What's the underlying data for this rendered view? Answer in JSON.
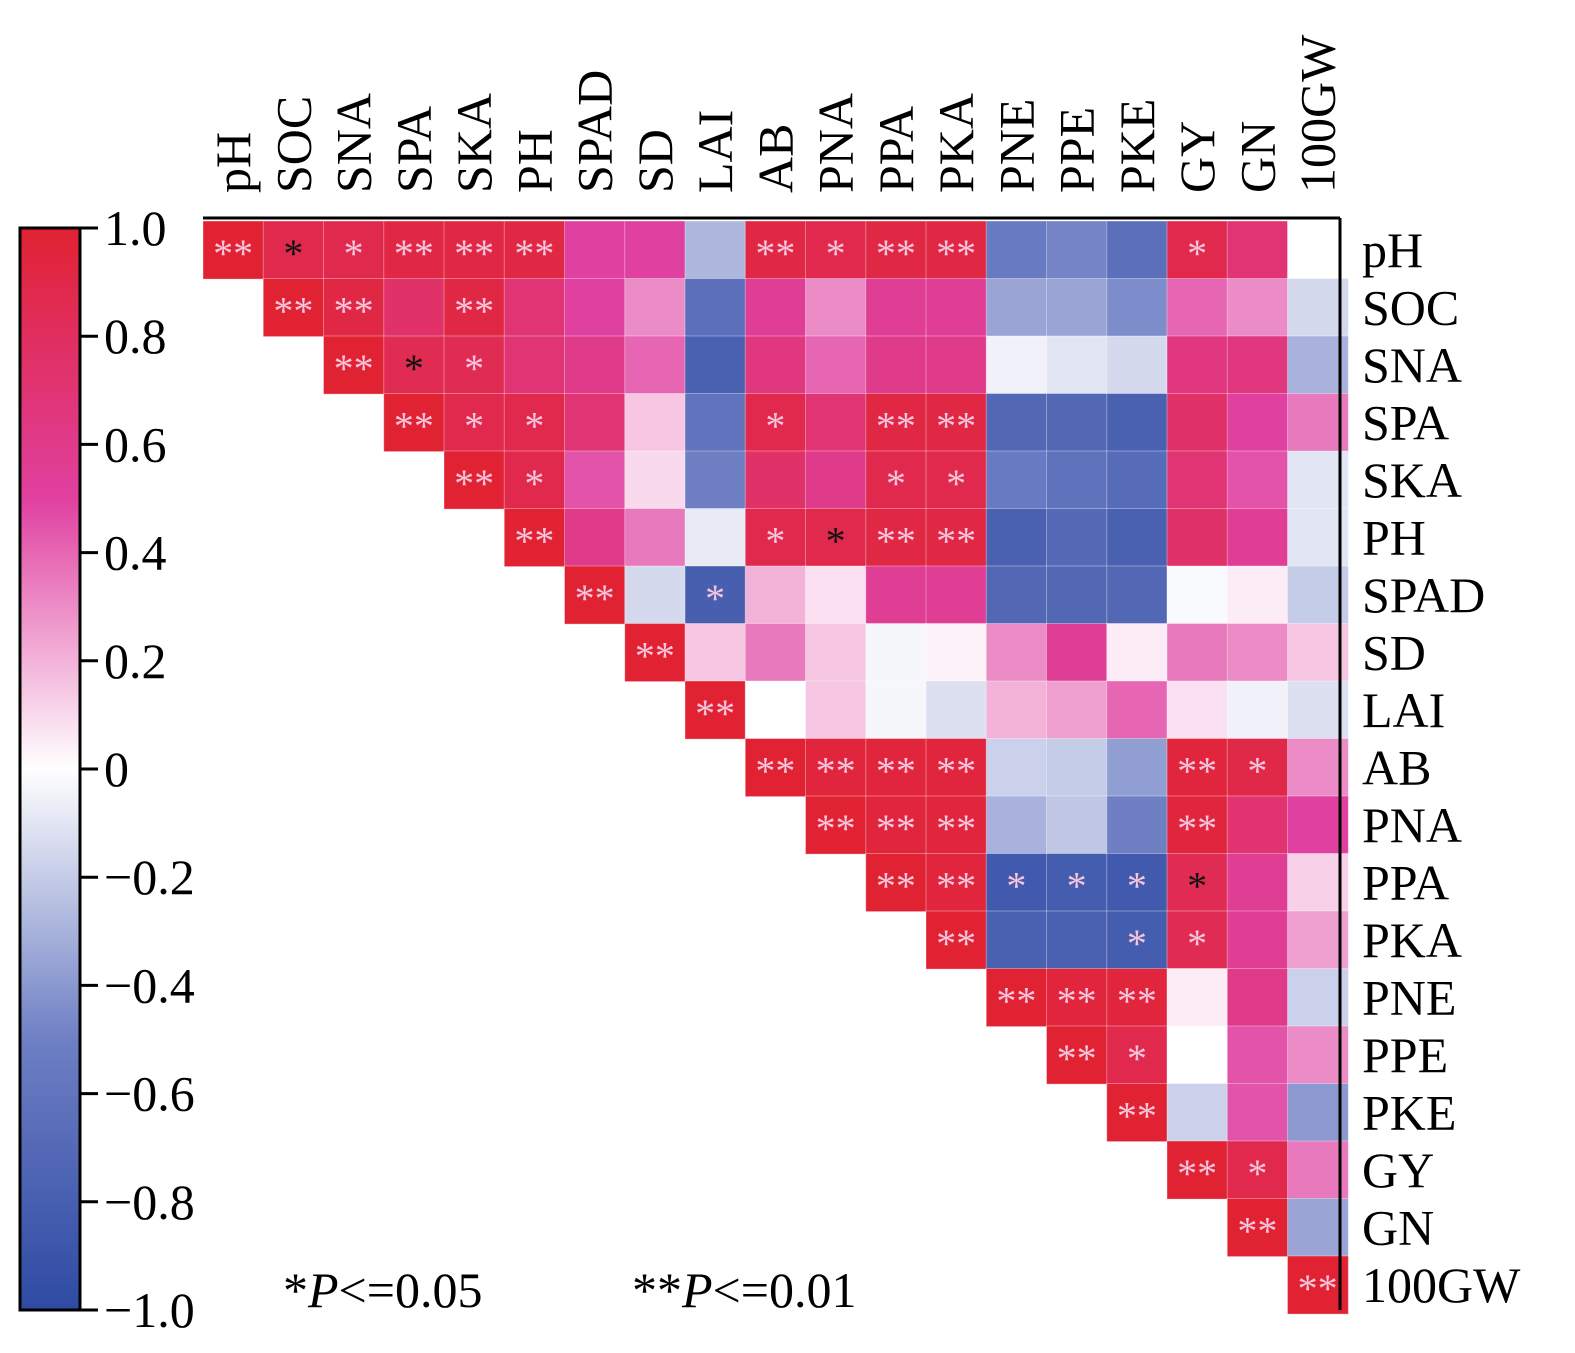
{
  "chart_data": {
    "type": "heatmap",
    "variables": [
      "pH",
      "SOC",
      "SNA",
      "SPA",
      "SKA",
      "PH",
      "SPAD",
      "SD",
      "LAI",
      "AB",
      "PNA",
      "PPA",
      "PKA",
      "PNE",
      "PPE",
      "PKE",
      "GY",
      "GN",
      "100GW"
    ],
    "matrix": [
      [
        1.0,
        0.88,
        0.88,
        0.92,
        0.92,
        0.92,
        0.5,
        0.5,
        -0.28,
        0.92,
        0.88,
        0.92,
        0.92,
        -0.55,
        -0.48,
        -0.65,
        0.88,
        0.7,
        0.0
      ],
      [
        null,
        1.0,
        0.92,
        0.75,
        0.92,
        0.7,
        0.5,
        0.3,
        -0.65,
        0.55,
        0.3,
        0.55,
        0.55,
        -0.35,
        -0.35,
        -0.45,
        0.4,
        0.3,
        -0.15
      ],
      [
        null,
        null,
        1.0,
        0.85,
        0.85,
        0.7,
        0.6,
        0.4,
        -0.78,
        0.65,
        0.4,
        0.6,
        0.6,
        -0.05,
        -0.1,
        -0.15,
        0.65,
        0.65,
        -0.3
      ],
      [
        null,
        null,
        null,
        1.0,
        0.88,
        0.88,
        0.7,
        0.15,
        -0.6,
        0.88,
        0.7,
        0.92,
        0.92,
        -0.72,
        -0.72,
        -0.78,
        0.75,
        0.5,
        0.35
      ],
      [
        null,
        null,
        null,
        null,
        1.0,
        0.88,
        0.45,
        0.1,
        -0.5,
        0.75,
        0.6,
        0.88,
        0.88,
        -0.55,
        -0.62,
        -0.68,
        0.7,
        0.45,
        -0.1
      ],
      [
        null,
        null,
        null,
        null,
        null,
        1.0,
        0.6,
        0.35,
        -0.08,
        0.88,
        0.88,
        0.92,
        0.92,
        -0.78,
        -0.7,
        -0.78,
        0.75,
        0.55,
        -0.1
      ],
      [
        null,
        null,
        null,
        null,
        null,
        null,
        1.0,
        -0.15,
        -0.8,
        0.2,
        0.08,
        0.55,
        0.55,
        -0.72,
        -0.72,
        -0.72,
        -0.02,
        0.05,
        -0.2
      ],
      [
        null,
        null,
        null,
        null,
        null,
        null,
        null,
        1.0,
        0.15,
        0.35,
        0.15,
        -0.03,
        0.03,
        0.3,
        0.55,
        0.05,
        0.35,
        0.3,
        0.15
      ],
      [
        null,
        null,
        null,
        null,
        null,
        null,
        null,
        null,
        1.0,
        0.0,
        0.15,
        -0.03,
        -0.12,
        0.2,
        0.25,
        0.4,
        0.08,
        -0.05,
        -0.12
      ],
      [
        null,
        null,
        null,
        null,
        null,
        null,
        null,
        null,
        null,
        1.0,
        0.95,
        0.95,
        0.95,
        -0.18,
        -0.2,
        -0.38,
        0.95,
        0.9,
        0.3
      ],
      [
        null,
        null,
        null,
        null,
        null,
        null,
        null,
        null,
        null,
        null,
        1.0,
        0.95,
        0.95,
        -0.3,
        -0.22,
        -0.5,
        0.95,
        0.72,
        0.5
      ],
      [
        null,
        null,
        null,
        null,
        null,
        null,
        null,
        null,
        null,
        null,
        null,
        1.0,
        0.95,
        -0.85,
        -0.82,
        -0.85,
        0.85,
        0.55,
        0.12
      ],
      [
        null,
        null,
        null,
        null,
        null,
        null,
        null,
        null,
        null,
        null,
        null,
        null,
        1.0,
        -0.78,
        -0.78,
        -0.82,
        0.85,
        0.55,
        0.25
      ],
      [
        null,
        null,
        null,
        null,
        null,
        null,
        null,
        null,
        null,
        null,
        null,
        null,
        null,
        1.0,
        0.95,
        0.95,
        0.05,
        0.6,
        -0.18
      ],
      [
        null,
        null,
        null,
        null,
        null,
        null,
        null,
        null,
        null,
        null,
        null,
        null,
        null,
        null,
        1.0,
        0.88,
        0.0,
        0.45,
        0.3
      ],
      [
        null,
        null,
        null,
        null,
        null,
        null,
        null,
        null,
        null,
        null,
        null,
        null,
        null,
        null,
        null,
        1.0,
        -0.18,
        0.45,
        -0.4
      ],
      [
        null,
        null,
        null,
        null,
        null,
        null,
        null,
        null,
        null,
        null,
        null,
        null,
        null,
        null,
        null,
        null,
        1.0,
        0.88,
        0.35
      ],
      [
        null,
        null,
        null,
        null,
        null,
        null,
        null,
        null,
        null,
        null,
        null,
        null,
        null,
        null,
        null,
        null,
        null,
        1.0,
        -0.35
      ],
      [
        null,
        null,
        null,
        null,
        null,
        null,
        null,
        null,
        null,
        null,
        null,
        null,
        null,
        null,
        null,
        null,
        null,
        null,
        1.0
      ]
    ],
    "significance": [
      [
        "**",
        "*",
        "*",
        "**",
        "**",
        "**",
        "",
        "",
        "",
        "**",
        "*",
        "**",
        "**",
        "",
        "",
        "",
        "*",
        "",
        ""
      ],
      [
        "",
        "**",
        "**",
        "",
        "**",
        "",
        "",
        "",
        "",
        "",
        "",
        "",
        "",
        "",
        "",
        "",
        "",
        "",
        ""
      ],
      [
        "",
        "",
        "**",
        "*",
        "*",
        "",
        "",
        "",
        "",
        "",
        "",
        "",
        "",
        "",
        "",
        "",
        "",
        "",
        ""
      ],
      [
        "",
        "",
        "",
        "**",
        "*",
        "*",
        "",
        "",
        "",
        "*",
        "",
        "**",
        "**",
        "",
        "",
        "",
        "",
        "",
        ""
      ],
      [
        "",
        "",
        "",
        "",
        "**",
        "*",
        "",
        "",
        "",
        "",
        "",
        "*",
        "*",
        "",
        "",
        "",
        "",
        "",
        ""
      ],
      [
        "",
        "",
        "",
        "",
        "",
        "**",
        "",
        "",
        "",
        "*",
        "*",
        "**",
        "**",
        "",
        "",
        "",
        "",
        "",
        ""
      ],
      [
        "",
        "",
        "",
        "",
        "",
        "",
        "**",
        "",
        "*",
        "",
        "",
        "",
        "",
        "",
        "",
        "",
        "",
        "",
        ""
      ],
      [
        "",
        "",
        "",
        "",
        "",
        "",
        "",
        "**",
        "",
        "",
        "",
        "",
        "",
        "",
        "",
        "",
        "",
        "",
        ""
      ],
      [
        "",
        "",
        "",
        "",
        "",
        "",
        "",
        "",
        "**",
        "",
        "",
        "",
        "",
        "",
        "",
        "",
        "",
        "",
        ""
      ],
      [
        "",
        "",
        "",
        "",
        "",
        "",
        "",
        "",
        "",
        "**",
        "**",
        "**",
        "**",
        "",
        "",
        "",
        "**",
        "*",
        ""
      ],
      [
        "",
        "",
        "",
        "",
        "",
        "",
        "",
        "",
        "",
        "",
        "**",
        "**",
        "**",
        "",
        "",
        "",
        "**",
        "",
        ""
      ],
      [
        "",
        "",
        "",
        "",
        "",
        "",
        "",
        "",
        "",
        "",
        "",
        "**",
        "**",
        "*",
        "*",
        "*",
        "*",
        "",
        ""
      ],
      [
        "",
        "",
        "",
        "",
        "",
        "",
        "",
        "",
        "",
        "",
        "",
        "",
        "**",
        "",
        "",
        "*",
        "*",
        "",
        ""
      ],
      [
        "",
        "",
        "",
        "",
        "",
        "",
        "",
        "",
        "",
        "",
        "",
        "",
        "",
        "**",
        "**",
        "**",
        "",
        "",
        ""
      ],
      [
        "",
        "",
        "",
        "",
        "",
        "",
        "",
        "",
        "",
        "",
        "",
        "",
        "",
        "",
        "**",
        "*",
        "",
        "",
        ""
      ],
      [
        "",
        "",
        "",
        "",
        "",
        "",
        "",
        "",
        "",
        "",
        "",
        "",
        "",
        "",
        "",
        "**",
        "",
        "",
        ""
      ],
      [
        "",
        "",
        "",
        "",
        "",
        "",
        "",
        "",
        "",
        "",
        "",
        "",
        "",
        "",
        "",
        "",
        "**",
        "*",
        ""
      ],
      [
        "",
        "",
        "",
        "",
        "",
        "",
        "",
        "",
        "",
        "",
        "",
        "",
        "",
        "",
        "",
        "",
        "",
        "**",
        ""
      ],
      [
        "",
        "",
        "",
        "",
        "",
        "",
        "",
        "",
        "",
        "",
        "",
        "",
        "",
        "",
        "",
        "",
        "",
        "",
        "**"
      ]
    ],
    "dark_stars": [
      [
        0,
        1
      ],
      [
        2,
        3
      ],
      [
        5,
        10
      ],
      [
        11,
        16
      ]
    ],
    "colorbar": {
      "range": [
        -1.0,
        1.0
      ],
      "ticks": [
        "1.0",
        "0.8",
        "0.6",
        "0.4",
        "0.2",
        "0",
        "−0.2",
        "−0.4",
        "−0.6",
        "−0.8",
        "−1.0"
      ],
      "colors": {
        "negative": "#2e4aa3",
        "zero": "#ffffff",
        "mid_positive": "#e040a0",
        "positive": "#e02232"
      }
    },
    "legend": {
      "p05": {
        "stars": "*",
        "p": "P",
        "rest": "<=0.05"
      },
      "p01": {
        "stars": "**",
        "p": "P",
        "rest": "<=0.01"
      }
    }
  }
}
